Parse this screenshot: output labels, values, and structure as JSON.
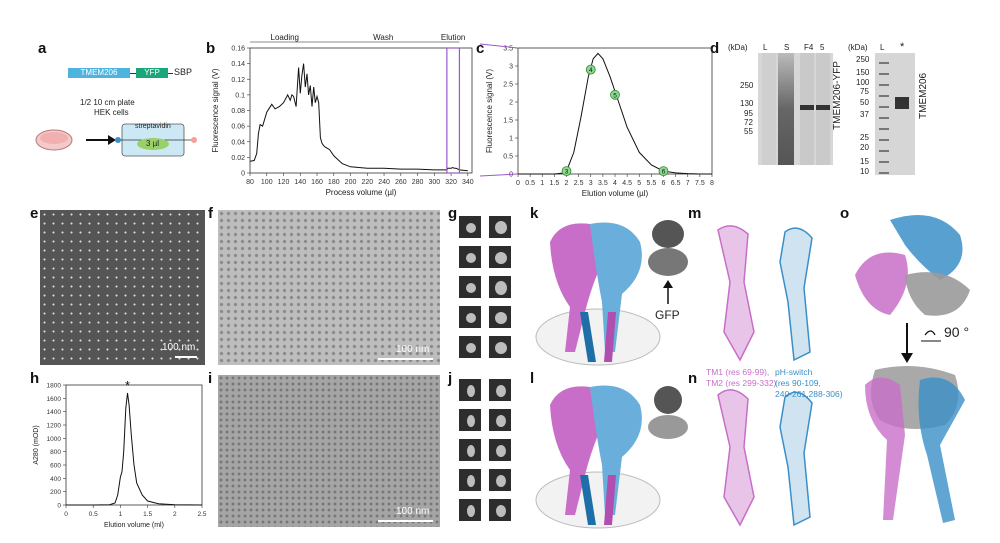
{
  "labels": {
    "a": "a",
    "b": "b",
    "c": "c",
    "d": "d",
    "e": "e",
    "f": "f",
    "g": "g",
    "h": "h",
    "i": "i",
    "j": "j",
    "k": "k",
    "l": "l",
    "m": "m",
    "n": "n",
    "o": "o"
  },
  "panel_a": {
    "construct_tmem": "TMEM206",
    "construct_yfp": "YFP",
    "construct_sbp": "SBP",
    "plate_text": "1/2 10 cm plate",
    "cells_text": "HEK cells",
    "streptavidin": "streptavidin",
    "volume": "3 µl",
    "colors": {
      "tmem": "#4fb3e0",
      "yfp": "#1aa57a",
      "box": "#cde8f5"
    }
  },
  "panel_d": {
    "kda": "(kDa)",
    "lanes1": [
      "L",
      "S",
      "F4",
      "5"
    ],
    "markers1": [
      "250",
      "130",
      "95",
      "72",
      "55"
    ],
    "protein1": "TMEM206-YFP",
    "lanes2": [
      "L",
      "*"
    ],
    "markers2": [
      "250",
      "150",
      "100",
      "75",
      "50",
      "37",
      "25",
      "20",
      "15",
      "10"
    ],
    "protein2": "TMEM206"
  },
  "panel_e": {
    "scale": "100 nm"
  },
  "panel_f": {
    "scale": "100 nm"
  },
  "panel_i": {
    "scale": "100 nm"
  },
  "panel_k": {
    "gfp": "GFP"
  },
  "panel_m": {
    "tm_label_line1": "TM1 (res 69-99),",
    "tm_label_line2": "TM2 (res 299-332)",
    "ph_label_line1": "pH-switch",
    "ph_label_line2": "(res 90-109,",
    "ph_label_line3": "240-261,288-306)"
  },
  "panel_o": {
    "rotation": "90 °"
  },
  "colors": {
    "magenta": "#c86ec8",
    "blue": "#3a8fc8",
    "gray": "#9a9a9a",
    "purple": "#9b59c6"
  },
  "chart_data": [
    {
      "id": "b",
      "type": "line",
      "xlabel": "Process volume (µl)",
      "ylabel": "Fluorescence signal (V)",
      "xlim": [
        80,
        345
      ],
      "ylim": [
        0,
        0.16
      ],
      "xticks": [
        80,
        100,
        120,
        140,
        160,
        180,
        200,
        220,
        240,
        260,
        280,
        300,
        320,
        340
      ],
      "yticks": [
        0,
        0.02,
        0.04,
        0.06,
        0.08,
        0.1,
        0.12,
        0.14,
        0.16
      ],
      "phases": [
        {
          "name": "Loading",
          "from": 80,
          "to": 163
        },
        {
          "name": "Wash",
          "from": 163,
          "to": 315
        },
        {
          "name": "Elution",
          "from": 315,
          "to": 330
        }
      ],
      "x": [
        80,
        85,
        88,
        90,
        92,
        95,
        100,
        103,
        106,
        110,
        115,
        120,
        125,
        128,
        130,
        132,
        135,
        138,
        140,
        142,
        144,
        146,
        148,
        150,
        152,
        154,
        156,
        158,
        160,
        162,
        164,
        166,
        168,
        170,
        175,
        180,
        190,
        200,
        220,
        240,
        260,
        280,
        300,
        310,
        315,
        316,
        318,
        320,
        322,
        324,
        326,
        328,
        330,
        340
      ],
      "y": [
        0.015,
        0.016,
        0.025,
        0.05,
        0.062,
        0.06,
        0.078,
        0.083,
        0.088,
        0.082,
        0.085,
        0.09,
        0.1,
        0.093,
        0.1,
        0.098,
        0.085,
        0.135,
        0.102,
        0.125,
        0.14,
        0.11,
        0.127,
        0.1,
        0.112,
        0.085,
        0.11,
        0.09,
        0.098,
        0.09,
        0.045,
        0.038,
        0.035,
        0.033,
        0.03,
        0.022,
        0.012,
        0.008,
        0.006,
        0.006,
        0.005,
        0.005,
        0.004,
        0.004,
        0.004,
        0.006,
        0.006,
        0.006,
        0.007,
        0.006,
        0.006,
        0.005,
        0.004,
        0.003
      ]
    },
    {
      "id": "c",
      "type": "line",
      "xlabel": "Elution volume (µl)",
      "ylabel": "Fluorescence signal (V)",
      "xlim": [
        0,
        8
      ],
      "ylim": [
        0,
        3.5
      ],
      "xticks": [
        0,
        0.5,
        1,
        1.5,
        2,
        2.5,
        3,
        3.5,
        4,
        4.5,
        5,
        5.5,
        6,
        6.5,
        7,
        7.5,
        8
      ],
      "yticks": [
        0,
        0.5,
        1,
        1.5,
        2,
        2.5,
        3,
        3.5
      ],
      "x": [
        0,
        1,
        1.5,
        1.8,
        2,
        2.3,
        2.6,
        2.9,
        3.1,
        3.3,
        3.5,
        3.8,
        4.1,
        4.5,
        5,
        5.5,
        6,
        6.5,
        7,
        7.5,
        8
      ],
      "y": [
        0,
        0,
        0,
        0.02,
        0.08,
        0.6,
        1.6,
        2.7,
        3.2,
        3.35,
        3.2,
        2.7,
        2.1,
        1.3,
        0.6,
        0.25,
        0.08,
        0.03,
        0.01,
        0,
        0
      ],
      "fractions": [
        {
          "label": "3",
          "x": 2,
          "y": 0.08
        },
        {
          "label": "4",
          "x": 3,
          "y": 2.9
        },
        {
          "label": "5",
          "x": 4,
          "y": 2.2
        },
        {
          "label": "6",
          "x": 6,
          "y": 0.08
        }
      ]
    },
    {
      "id": "h",
      "type": "line",
      "xlabel": "Elution volume (ml)",
      "ylabel": "A280 (mOD)",
      "xlim": [
        0,
        2.5
      ],
      "ylim": [
        0,
        1800
      ],
      "xticks": [
        0,
        0.5,
        1,
        1.5,
        2,
        2.5
      ],
      "yticks": [
        0,
        200,
        400,
        600,
        800,
        1000,
        1200,
        1400,
        1600,
        1800
      ],
      "annotation": "*",
      "x": [
        0,
        0.5,
        0.8,
        0.9,
        0.95,
        1,
        1.03,
        1.06,
        1.1,
        1.13,
        1.16,
        1.2,
        1.25,
        1.3,
        1.4,
        1.5,
        1.7,
        2,
        2.5
      ],
      "y": [
        0,
        0,
        5,
        30,
        150,
        420,
        500,
        800,
        1450,
        1680,
        1500,
        1050,
        600,
        330,
        150,
        60,
        20,
        5,
        0
      ]
    }
  ]
}
